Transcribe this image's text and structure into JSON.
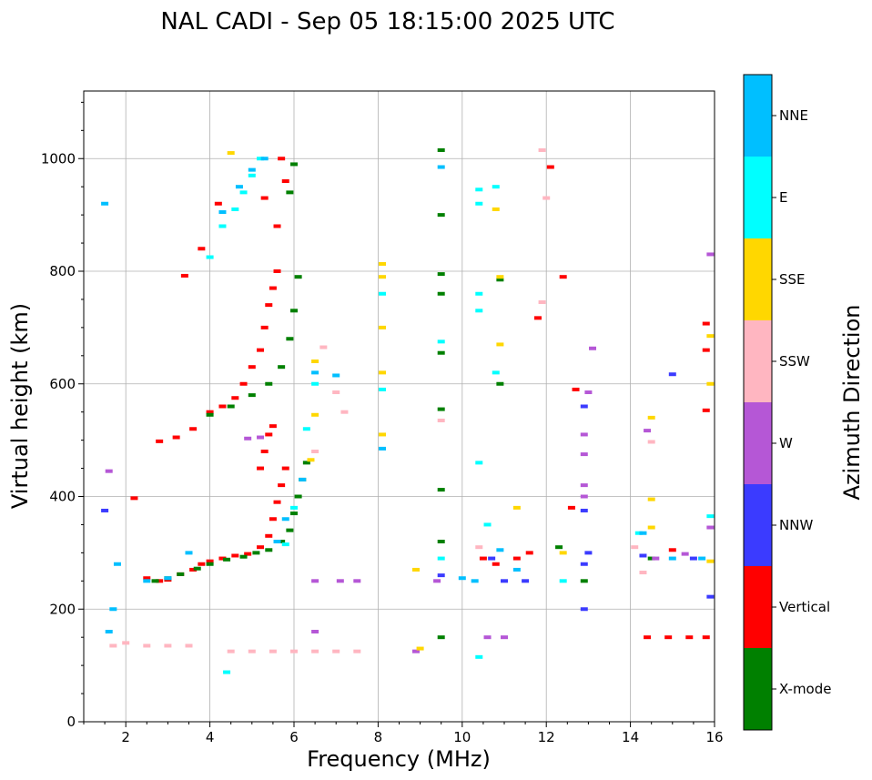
{
  "chart_data": {
    "type": "scatter",
    "title": "NAL CADI - Sep 05 18:15:00 2025 UTC",
    "xlabel": "Frequency (MHz)",
    "ylabel": "Virtual height (km)",
    "xlim": [
      1,
      16
    ],
    "ylim": [
      0,
      1120
    ],
    "xticks": [
      2,
      4,
      6,
      8,
      10,
      12,
      14,
      16
    ],
    "yticks": [
      0,
      200,
      400,
      600,
      800,
      1000
    ],
    "grid": true,
    "colorbar": {
      "label": "Azimuth Direction",
      "categories": [
        {
          "name": "X-mode",
          "color": "#008000"
        },
        {
          "name": "Vertical",
          "color": "#ff0000"
        },
        {
          "name": "NNW",
          "color": "#3b3bff"
        },
        {
          "name": "W",
          "color": "#b557d6"
        },
        {
          "name": "SSW",
          "color": "#ffb6c1"
        },
        {
          "name": "SSE",
          "color": "#ffd700"
        },
        {
          "name": "E",
          "color": "#00ffff"
        },
        {
          "name": "NNE",
          "color": "#00bfff"
        }
      ]
    },
    "series": [
      {
        "name": "Vertical",
        "points": [
          [
            2.2,
            397
          ],
          [
            2.5,
            255
          ],
          [
            2.8,
            250
          ],
          [
            3.0,
            252
          ],
          [
            3.3,
            262
          ],
          [
            3.6,
            270
          ],
          [
            3.8,
            280
          ],
          [
            4.0,
            285
          ],
          [
            4.3,
            290
          ],
          [
            4.6,
            295
          ],
          [
            4.9,
            298
          ],
          [
            5.2,
            310
          ],
          [
            5.4,
            330
          ],
          [
            5.5,
            360
          ],
          [
            5.6,
            390
          ],
          [
            5.7,
            420
          ],
          [
            5.8,
            450
          ],
          [
            5.2,
            450
          ],
          [
            5.3,
            480
          ],
          [
            5.4,
            510
          ],
          [
            5.5,
            525
          ],
          [
            2.8,
            498
          ],
          [
            3.2,
            505
          ],
          [
            3.6,
            520
          ],
          [
            4.0,
            550
          ],
          [
            4.3,
            560
          ],
          [
            4.6,
            575
          ],
          [
            4.8,
            600
          ],
          [
            5.0,
            630
          ],
          [
            5.2,
            660
          ],
          [
            5.3,
            700
          ],
          [
            5.4,
            740
          ],
          [
            5.5,
            770
          ],
          [
            5.6,
            800
          ],
          [
            3.4,
            792
          ],
          [
            3.8,
            840
          ],
          [
            4.2,
            920
          ],
          [
            5.3,
            930
          ],
          [
            5.6,
            880
          ],
          [
            5.8,
            960
          ],
          [
            5.7,
            1000
          ],
          [
            10.5,
            290
          ],
          [
            10.8,
            280
          ],
          [
            11.3,
            290
          ],
          [
            11.6,
            300
          ],
          [
            12.6,
            380
          ],
          [
            12.7,
            590
          ],
          [
            11.8,
            717
          ],
          [
            12.1,
            985
          ],
          [
            14.4,
            150
          ],
          [
            14.9,
            150
          ],
          [
            15.4,
            150
          ],
          [
            15.8,
            150
          ],
          [
            15.0,
            305
          ],
          [
            15.8,
            553
          ],
          [
            15.8,
            660
          ],
          [
            15.8,
            707
          ],
          [
            12.4,
            790
          ]
        ]
      },
      {
        "name": "X-mode",
        "points": [
          [
            2.7,
            250
          ],
          [
            3.0,
            255
          ],
          [
            3.3,
            262
          ],
          [
            3.7,
            272
          ],
          [
            4.0,
            280
          ],
          [
            4.4,
            288
          ],
          [
            4.8,
            293
          ],
          [
            5.1,
            300
          ],
          [
            5.4,
            305
          ],
          [
            5.7,
            320
          ],
          [
            5.9,
            340
          ],
          [
            6.0,
            370
          ],
          [
            6.1,
            400
          ],
          [
            6.2,
            430
          ],
          [
            6.3,
            460
          ],
          [
            4.0,
            545
          ],
          [
            4.5,
            560
          ],
          [
            5.0,
            580
          ],
          [
            5.4,
            600
          ],
          [
            5.7,
            630
          ],
          [
            5.9,
            680
          ],
          [
            6.0,
            730
          ],
          [
            6.1,
            790
          ],
          [
            6.0,
            990
          ],
          [
            5.9,
            940
          ],
          [
            9.5,
            1015
          ],
          [
            9.5,
            900
          ],
          [
            9.5,
            795
          ],
          [
            9.5,
            760
          ],
          [
            9.5,
            655
          ],
          [
            9.5,
            555
          ],
          [
            9.5,
            412
          ],
          [
            9.5,
            320
          ],
          [
            9.5,
            150
          ],
          [
            10.9,
            600
          ],
          [
            10.9,
            785
          ],
          [
            12.3,
            310
          ],
          [
            12.9,
            250
          ],
          [
            14.5,
            290
          ]
        ]
      },
      {
        "name": "NNW",
        "points": [
          [
            1.5,
            375
          ],
          [
            9.5,
            260
          ],
          [
            10.7,
            290
          ],
          [
            11.0,
            250
          ],
          [
            12.9,
            200
          ],
          [
            12.9,
            280
          ],
          [
            12.9,
            375
          ],
          [
            12.9,
            560
          ],
          [
            13.0,
            300
          ],
          [
            15.0,
            617
          ],
          [
            15.5,
            290
          ],
          [
            15.9,
            222
          ],
          [
            14.3,
            295
          ],
          [
            11.5,
            250
          ]
        ]
      },
      {
        "name": "W",
        "points": [
          [
            1.6,
            445
          ],
          [
            4.9,
            503
          ],
          [
            5.2,
            505
          ],
          [
            6.5,
            160
          ],
          [
            6.5,
            250
          ],
          [
            7.1,
            250
          ],
          [
            7.5,
            250
          ],
          [
            8.9,
            125
          ],
          [
            9.4,
            250
          ],
          [
            10.6,
            150
          ],
          [
            11.0,
            150
          ],
          [
            12.9,
            510
          ],
          [
            12.9,
            475
          ],
          [
            12.9,
            420
          ],
          [
            12.9,
            400
          ],
          [
            13.0,
            585
          ],
          [
            13.1,
            663
          ],
          [
            15.9,
            830
          ],
          [
            15.9,
            345
          ],
          [
            14.6,
            290
          ],
          [
            14.4,
            517
          ],
          [
            15.3,
            298
          ]
        ]
      },
      {
        "name": "SSW",
        "points": [
          [
            1.7,
            135
          ],
          [
            2.0,
            140
          ],
          [
            2.5,
            135
          ],
          [
            3.0,
            135
          ],
          [
            3.5,
            135
          ],
          [
            4.5,
            125
          ],
          [
            5.0,
            125
          ],
          [
            5.5,
            125
          ],
          [
            6.0,
            125
          ],
          [
            6.5,
            125
          ],
          [
            7.0,
            125
          ],
          [
            7.5,
            125
          ],
          [
            6.5,
            480
          ],
          [
            6.7,
            665
          ],
          [
            7.0,
            585
          ],
          [
            7.2,
            550
          ],
          [
            9.5,
            535
          ],
          [
            10.4,
            310
          ],
          [
            11.9,
            1015
          ],
          [
            12.0,
            930
          ],
          [
            11.9,
            745
          ],
          [
            14.5,
            497
          ],
          [
            14.3,
            265
          ],
          [
            14.1,
            310
          ]
        ]
      },
      {
        "name": "SSE",
        "points": [
          [
            8.1,
            510
          ],
          [
            8.1,
            620
          ],
          [
            8.1,
            700
          ],
          [
            8.1,
            790
          ],
          [
            8.1,
            813
          ],
          [
            8.9,
            270
          ],
          [
            9.0,
            130
          ],
          [
            10.9,
            790
          ],
          [
            10.9,
            670
          ],
          [
            10.8,
            910
          ],
          [
            6.5,
            545
          ],
          [
            6.5,
            640
          ],
          [
            6.4,
            465
          ],
          [
            4.5,
            1010
          ],
          [
            11.3,
            380
          ],
          [
            14.5,
            345
          ],
          [
            14.5,
            395
          ],
          [
            14.5,
            540
          ],
          [
            15.9,
            285
          ],
          [
            15.9,
            600
          ],
          [
            15.9,
            685
          ],
          [
            12.4,
            300
          ]
        ]
      },
      {
        "name": "E",
        "points": [
          [
            4.0,
            825
          ],
          [
            4.3,
            880
          ],
          [
            4.6,
            910
          ],
          [
            4.8,
            940
          ],
          [
            5.0,
            970
          ],
          [
            5.2,
            1000
          ],
          [
            5.8,
            315
          ],
          [
            6.0,
            380
          ],
          [
            6.3,
            520
          ],
          [
            6.5,
            600
          ],
          [
            8.1,
            590
          ],
          [
            8.1,
            760
          ],
          [
            9.5,
            290
          ],
          [
            9.5,
            675
          ],
          [
            10.4,
            460
          ],
          [
            10.4,
            730
          ],
          [
            10.4,
            760
          ],
          [
            10.4,
            920
          ],
          [
            10.4,
            945
          ],
          [
            10.6,
            350
          ],
          [
            10.8,
            620
          ],
          [
            10.8,
            950
          ],
          [
            12.4,
            250
          ],
          [
            14.2,
            335
          ],
          [
            15.9,
            365
          ],
          [
            10.4,
            115
          ],
          [
            4.4,
            88
          ]
        ]
      },
      {
        "name": "NNE",
        "points": [
          [
            1.5,
            920
          ],
          [
            1.8,
            280
          ],
          [
            1.7,
            200
          ],
          [
            1.6,
            160
          ],
          [
            2.5,
            250
          ],
          [
            3.0,
            255
          ],
          [
            3.5,
            300
          ],
          [
            4.3,
            905
          ],
          [
            4.7,
            950
          ],
          [
            5.0,
            980
          ],
          [
            5.3,
            1000
          ],
          [
            5.6,
            320
          ],
          [
            5.8,
            360
          ],
          [
            6.2,
            430
          ],
          [
            6.5,
            620
          ],
          [
            7.0,
            615
          ],
          [
            8.1,
            485
          ],
          [
            9.5,
            985
          ],
          [
            10.0,
            255
          ],
          [
            10.3,
            250
          ],
          [
            10.9,
            305
          ],
          [
            11.3,
            270
          ],
          [
            14.3,
            335
          ],
          [
            15.0,
            290
          ],
          [
            15.7,
            290
          ]
        ]
      }
    ]
  }
}
